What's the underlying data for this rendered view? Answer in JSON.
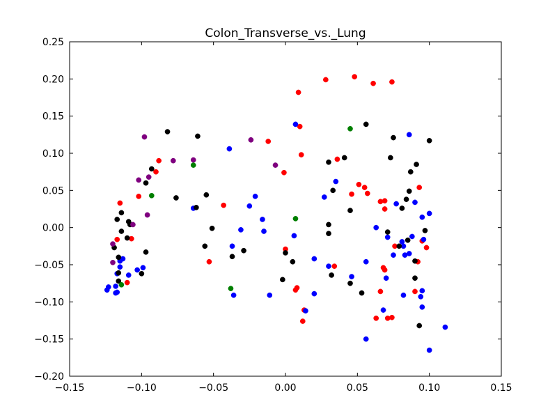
{
  "chart_data": {
    "type": "scatter",
    "title": "Colon_Transverse_vs._Lung",
    "xlabel": "",
    "ylabel": "",
    "xlim": [
      -0.15,
      0.15
    ],
    "ylim": [
      -0.2,
      0.25
    ],
    "xticks": [
      "−0.15",
      "−0.10",
      "−0.05",
      "0.00",
      "0.05",
      "0.10",
      "0.15"
    ],
    "yticks": [
      "−0.20",
      "−0.15",
      "−0.10",
      "−0.05",
      "0.00",
      "0.05",
      "0.10",
      "0.15",
      "0.20",
      "0.25"
    ],
    "xtick_values": [
      -0.15,
      -0.1,
      -0.05,
      0.0,
      0.05,
      0.1,
      0.15
    ],
    "ytick_values": [
      -0.2,
      -0.15,
      -0.1,
      -0.05,
      0.0,
      0.05,
      0.1,
      0.15,
      0.2,
      0.25
    ],
    "grid": false,
    "series": [
      {
        "color": "#ff0000",
        "points": [
          [
            0.009,
            0.182
          ],
          [
            0.028,
            0.199
          ],
          [
            0.048,
            0.203
          ],
          [
            0.061,
            0.194
          ],
          [
            0.074,
            0.196
          ],
          [
            0.01,
            0.136
          ],
          [
            -0.012,
            0.116
          ],
          [
            0.011,
            0.098
          ],
          [
            0.036,
            0.092
          ],
          [
            -0.088,
            0.09
          ],
          [
            -0.09,
            0.075
          ],
          [
            -0.001,
            0.074
          ],
          [
            0.051,
            0.058
          ],
          [
            0.055,
            0.054
          ],
          [
            0.093,
            0.054
          ],
          [
            0.057,
            0.046
          ],
          [
            0.046,
            0.045
          ],
          [
            -0.102,
            0.042
          ],
          [
            0.066,
            0.035
          ],
          [
            0.069,
            0.036
          ],
          [
            -0.115,
            0.033
          ],
          [
            -0.043,
            0.03
          ],
          [
            0.069,
            0.025
          ],
          [
            -0.117,
            -0.016
          ],
          [
            -0.107,
            -0.015
          ],
          [
            0.076,
            -0.025
          ],
          [
            0.095,
            -0.018
          ],
          [
            0.098,
            -0.027
          ],
          [
            0.0,
            -0.029
          ],
          [
            -0.053,
            -0.046
          ],
          [
            0.092,
            -0.046
          ],
          [
            0.034,
            -0.052
          ],
          [
            0.068,
            -0.054
          ],
          [
            0.069,
            -0.057
          ],
          [
            -0.11,
            -0.074
          ],
          [
            0.008,
            -0.081
          ],
          [
            0.007,
            -0.084
          ],
          [
            0.066,
            -0.086
          ],
          [
            0.09,
            -0.086
          ],
          [
            0.013,
            -0.111
          ],
          [
            0.063,
            -0.122
          ],
          [
            0.071,
            -0.122
          ],
          [
            0.074,
            -0.121
          ],
          [
            0.012,
            -0.126
          ]
        ]
      },
      {
        "color": "#0000ff",
        "points": [
          [
            0.007,
            0.139
          ],
          [
            0.086,
            0.125
          ],
          [
            -0.039,
            0.106
          ],
          [
            0.035,
            0.062
          ],
          [
            -0.021,
            0.042
          ],
          [
            0.027,
            0.041
          ],
          [
            0.077,
            0.032
          ],
          [
            0.09,
            0.034
          ],
          [
            -0.025,
            0.029
          ],
          [
            -0.064,
            0.026
          ],
          [
            0.095,
            0.014
          ],
          [
            0.1,
            0.019
          ],
          [
            -0.016,
            0.011
          ],
          [
            0.063,
            0.0
          ],
          [
            -0.031,
            -0.003
          ],
          [
            -0.015,
            -0.005
          ],
          [
            0.006,
            -0.011
          ],
          [
            0.071,
            -0.013
          ],
          [
            0.088,
            -0.012
          ],
          [
            0.081,
            -0.019
          ],
          [
            0.096,
            -0.016
          ],
          [
            0.082,
            -0.025
          ],
          [
            -0.037,
            -0.025
          ],
          [
            0.075,
            -0.037
          ],
          [
            0.083,
            -0.037
          ],
          [
            0.086,
            -0.035
          ],
          [
            0.02,
            -0.042
          ],
          [
            -0.113,
            -0.042
          ],
          [
            -0.115,
            -0.045
          ],
          [
            0.056,
            -0.046
          ],
          [
            -0.115,
            -0.053
          ],
          [
            0.03,
            -0.052
          ],
          [
            -0.099,
            -0.054
          ],
          [
            -0.103,
            -0.057
          ],
          [
            -0.117,
            -0.062
          ],
          [
            -0.109,
            -0.064
          ],
          [
            0.046,
            -0.066
          ],
          [
            0.07,
            -0.068
          ],
          [
            -0.123,
            -0.08
          ],
          [
            -0.118,
            -0.079
          ],
          [
            -0.124,
            -0.084
          ],
          [
            -0.117,
            -0.087
          ],
          [
            -0.118,
            -0.088
          ],
          [
            0.095,
            -0.085
          ],
          [
            0.094,
            -0.093
          ],
          [
            -0.036,
            -0.091
          ],
          [
            -0.011,
            -0.091
          ],
          [
            0.02,
            -0.089
          ],
          [
            0.082,
            -0.091
          ],
          [
            0.095,
            -0.107
          ],
          [
            0.068,
            -0.111
          ],
          [
            0.014,
            -0.112
          ],
          [
            0.111,
            -0.134
          ],
          [
            0.056,
            -0.15
          ],
          [
            0.1,
            -0.165
          ]
        ]
      },
      {
        "color": "#000000",
        "points": [
          [
            -0.082,
            0.129
          ],
          [
            0.056,
            0.139
          ],
          [
            -0.061,
            0.123
          ],
          [
            0.075,
            0.121
          ],
          [
            0.1,
            0.117
          ],
          [
            0.041,
            0.094
          ],
          [
            0.073,
            0.094
          ],
          [
            0.03,
            0.088
          ],
          [
            0.091,
            0.085
          ],
          [
            -0.093,
            0.079
          ],
          [
            0.087,
            0.075
          ],
          [
            -0.097,
            0.06
          ],
          [
            0.033,
            0.05
          ],
          [
            0.086,
            0.049
          ],
          [
            -0.055,
            0.044
          ],
          [
            -0.076,
            0.04
          ],
          [
            0.084,
            0.038
          ],
          [
            0.081,
            0.026
          ],
          [
            -0.062,
            0.027
          ],
          [
            0.045,
            0.023
          ],
          [
            -0.114,
            0.02
          ],
          [
            -0.117,
            0.011
          ],
          [
            -0.109,
            0.008
          ],
          [
            -0.108,
            0.004
          ],
          [
            0.03,
            0.004
          ],
          [
            -0.051,
            -0.001
          ],
          [
            -0.114,
            -0.005
          ],
          [
            0.097,
            -0.004
          ],
          [
            0.071,
            -0.006
          ],
          [
            0.03,
            -0.008
          ],
          [
            -0.11,
            -0.014
          ],
          [
            0.085,
            -0.017
          ],
          [
            -0.119,
            -0.027
          ],
          [
            -0.056,
            -0.025
          ],
          [
            0.079,
            -0.025
          ],
          [
            -0.029,
            -0.031
          ],
          [
            -0.097,
            -0.033
          ],
          [
            0.0,
            -0.034
          ],
          [
            -0.037,
            -0.039
          ],
          [
            -0.116,
            -0.04
          ],
          [
            0.005,
            -0.046
          ],
          [
            0.09,
            -0.045
          ],
          [
            -0.116,
            -0.061
          ],
          [
            -0.1,
            -0.062
          ],
          [
            0.032,
            -0.064
          ],
          [
            -0.002,
            -0.07
          ],
          [
            -0.116,
            -0.072
          ],
          [
            0.045,
            -0.075
          ],
          [
            0.09,
            -0.068
          ],
          [
            0.053,
            -0.088
          ],
          [
            0.093,
            -0.132
          ]
        ]
      },
      {
        "color": "#7f007f",
        "points": [
          [
            -0.098,
            0.122
          ],
          [
            -0.024,
            0.118
          ],
          [
            -0.078,
            0.09
          ],
          [
            -0.064,
            0.091
          ],
          [
            -0.007,
            0.084
          ],
          [
            -0.095,
            0.068
          ],
          [
            -0.102,
            0.064
          ],
          [
            -0.096,
            0.017
          ],
          [
            -0.106,
            0.004
          ],
          [
            -0.12,
            -0.022
          ],
          [
            -0.12,
            -0.047
          ]
        ]
      },
      {
        "color": "#007f00",
        "points": [
          [
            0.045,
            0.133
          ],
          [
            -0.064,
            0.084
          ],
          [
            -0.093,
            0.043
          ],
          [
            0.007,
            0.012
          ],
          [
            -0.038,
            -0.082
          ],
          [
            -0.114,
            -0.077
          ]
        ]
      }
    ]
  }
}
